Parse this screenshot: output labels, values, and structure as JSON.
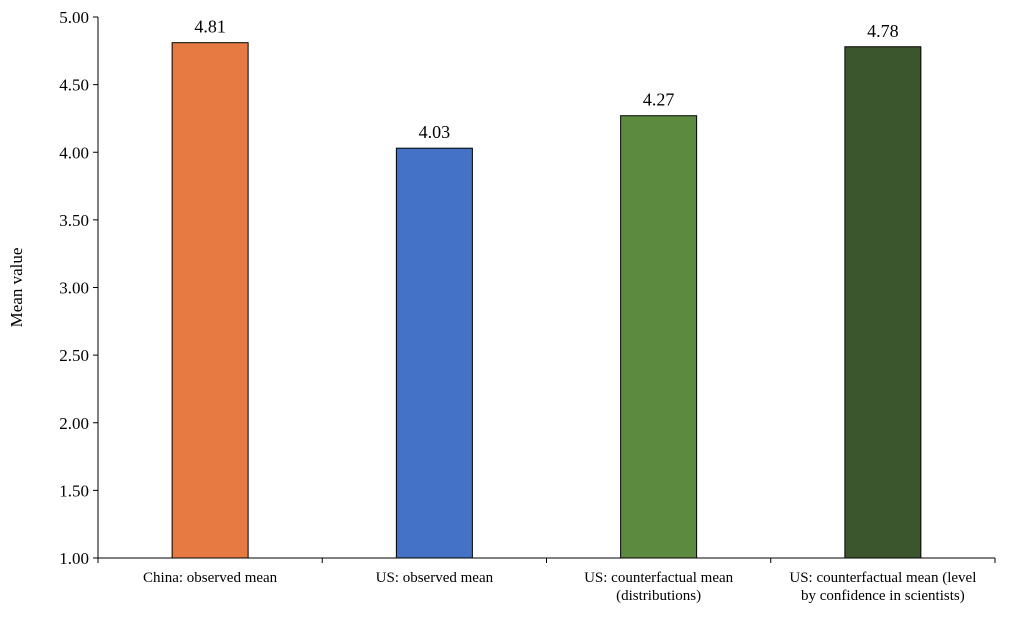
{
  "chart_data": {
    "type": "bar",
    "categories": [
      [
        "China: observed mean"
      ],
      [
        "US: observed mean"
      ],
      [
        "US: counterfactual mean",
        "(distributions)"
      ],
      [
        "US: counterfactual mean (level",
        "by confidence in scientists)"
      ]
    ],
    "values": [
      4.81,
      4.03,
      4.27,
      4.78
    ],
    "data_labels": [
      "4.81",
      "4.03",
      "4.27",
      "4.78"
    ],
    "colors": [
      "#E67A42",
      "#4472C4",
      "#5C8A3E",
      "#3B562D"
    ],
    "ylabel": "Mean value",
    "ylim": [
      1.0,
      5.0
    ],
    "yticks": [
      "1.00",
      "1.50",
      "2.00",
      "2.50",
      "3.00",
      "3.50",
      "4.00",
      "4.50",
      "5.00"
    ],
    "grid": false,
    "legend": "none"
  }
}
